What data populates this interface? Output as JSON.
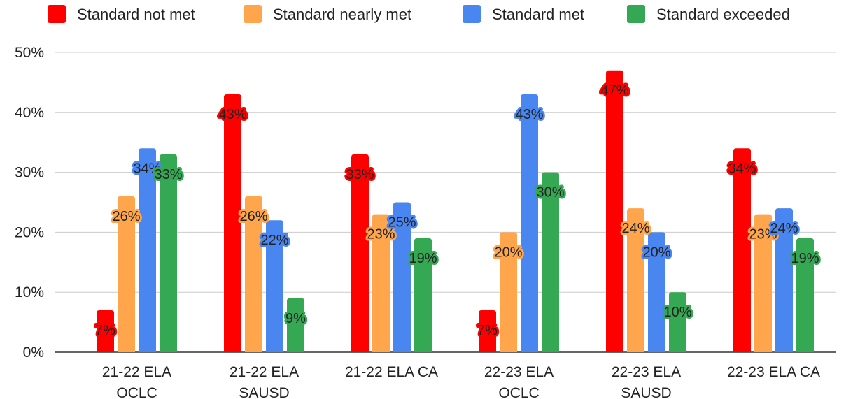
{
  "chart_data": {
    "type": "bar",
    "categories": [
      [
        "21-22 ELA",
        "OCLC"
      ],
      [
        "21-22 ELA",
        "SAUSD"
      ],
      [
        "21-22 ELA CA"
      ],
      [
        "22-23 ELA",
        "OCLC"
      ],
      [
        "22-23 ELA",
        "SAUSD"
      ],
      [
        "22-23 ELA CA"
      ]
    ],
    "series": [
      {
        "name": "Standard not met",
        "color": "#ff0000",
        "values": [
          7,
          43,
          33,
          7,
          47,
          34
        ],
        "labels": [
          "7%",
          "43%",
          "33%",
          "7%",
          "47%",
          "34%"
        ]
      },
      {
        "name": "Standard nearly met",
        "color": "#ffa64d",
        "values": [
          26,
          26,
          23,
          20,
          24,
          23
        ],
        "labels": [
          "26%",
          "26%",
          "23%",
          "20%",
          "24%",
          "23%"
        ]
      },
      {
        "name": "Standard met",
        "color": "#4a86f0",
        "values": [
          34,
          22,
          25,
          43,
          20,
          24
        ],
        "labels": [
          "34%",
          "22%",
          "25%",
          "43%",
          "20%",
          "24%"
        ]
      },
      {
        "name": "Standard exceeded",
        "color": "#34a853",
        "values": [
          33,
          9,
          19,
          30,
          10,
          19
        ],
        "labels": [
          "33%",
          "9%",
          "19%",
          "30%",
          "10%",
          "19%"
        ]
      }
    ],
    "title": "",
    "xlabel": "",
    "ylabel": "",
    "ylim": [
      0,
      50
    ],
    "yticks": [
      0,
      10,
      20,
      30,
      40,
      50
    ],
    "ytick_labels": [
      "0%",
      "10%",
      "20%",
      "30%",
      "40%",
      "50%"
    ],
    "grid": true,
    "legend_position": "top"
  }
}
